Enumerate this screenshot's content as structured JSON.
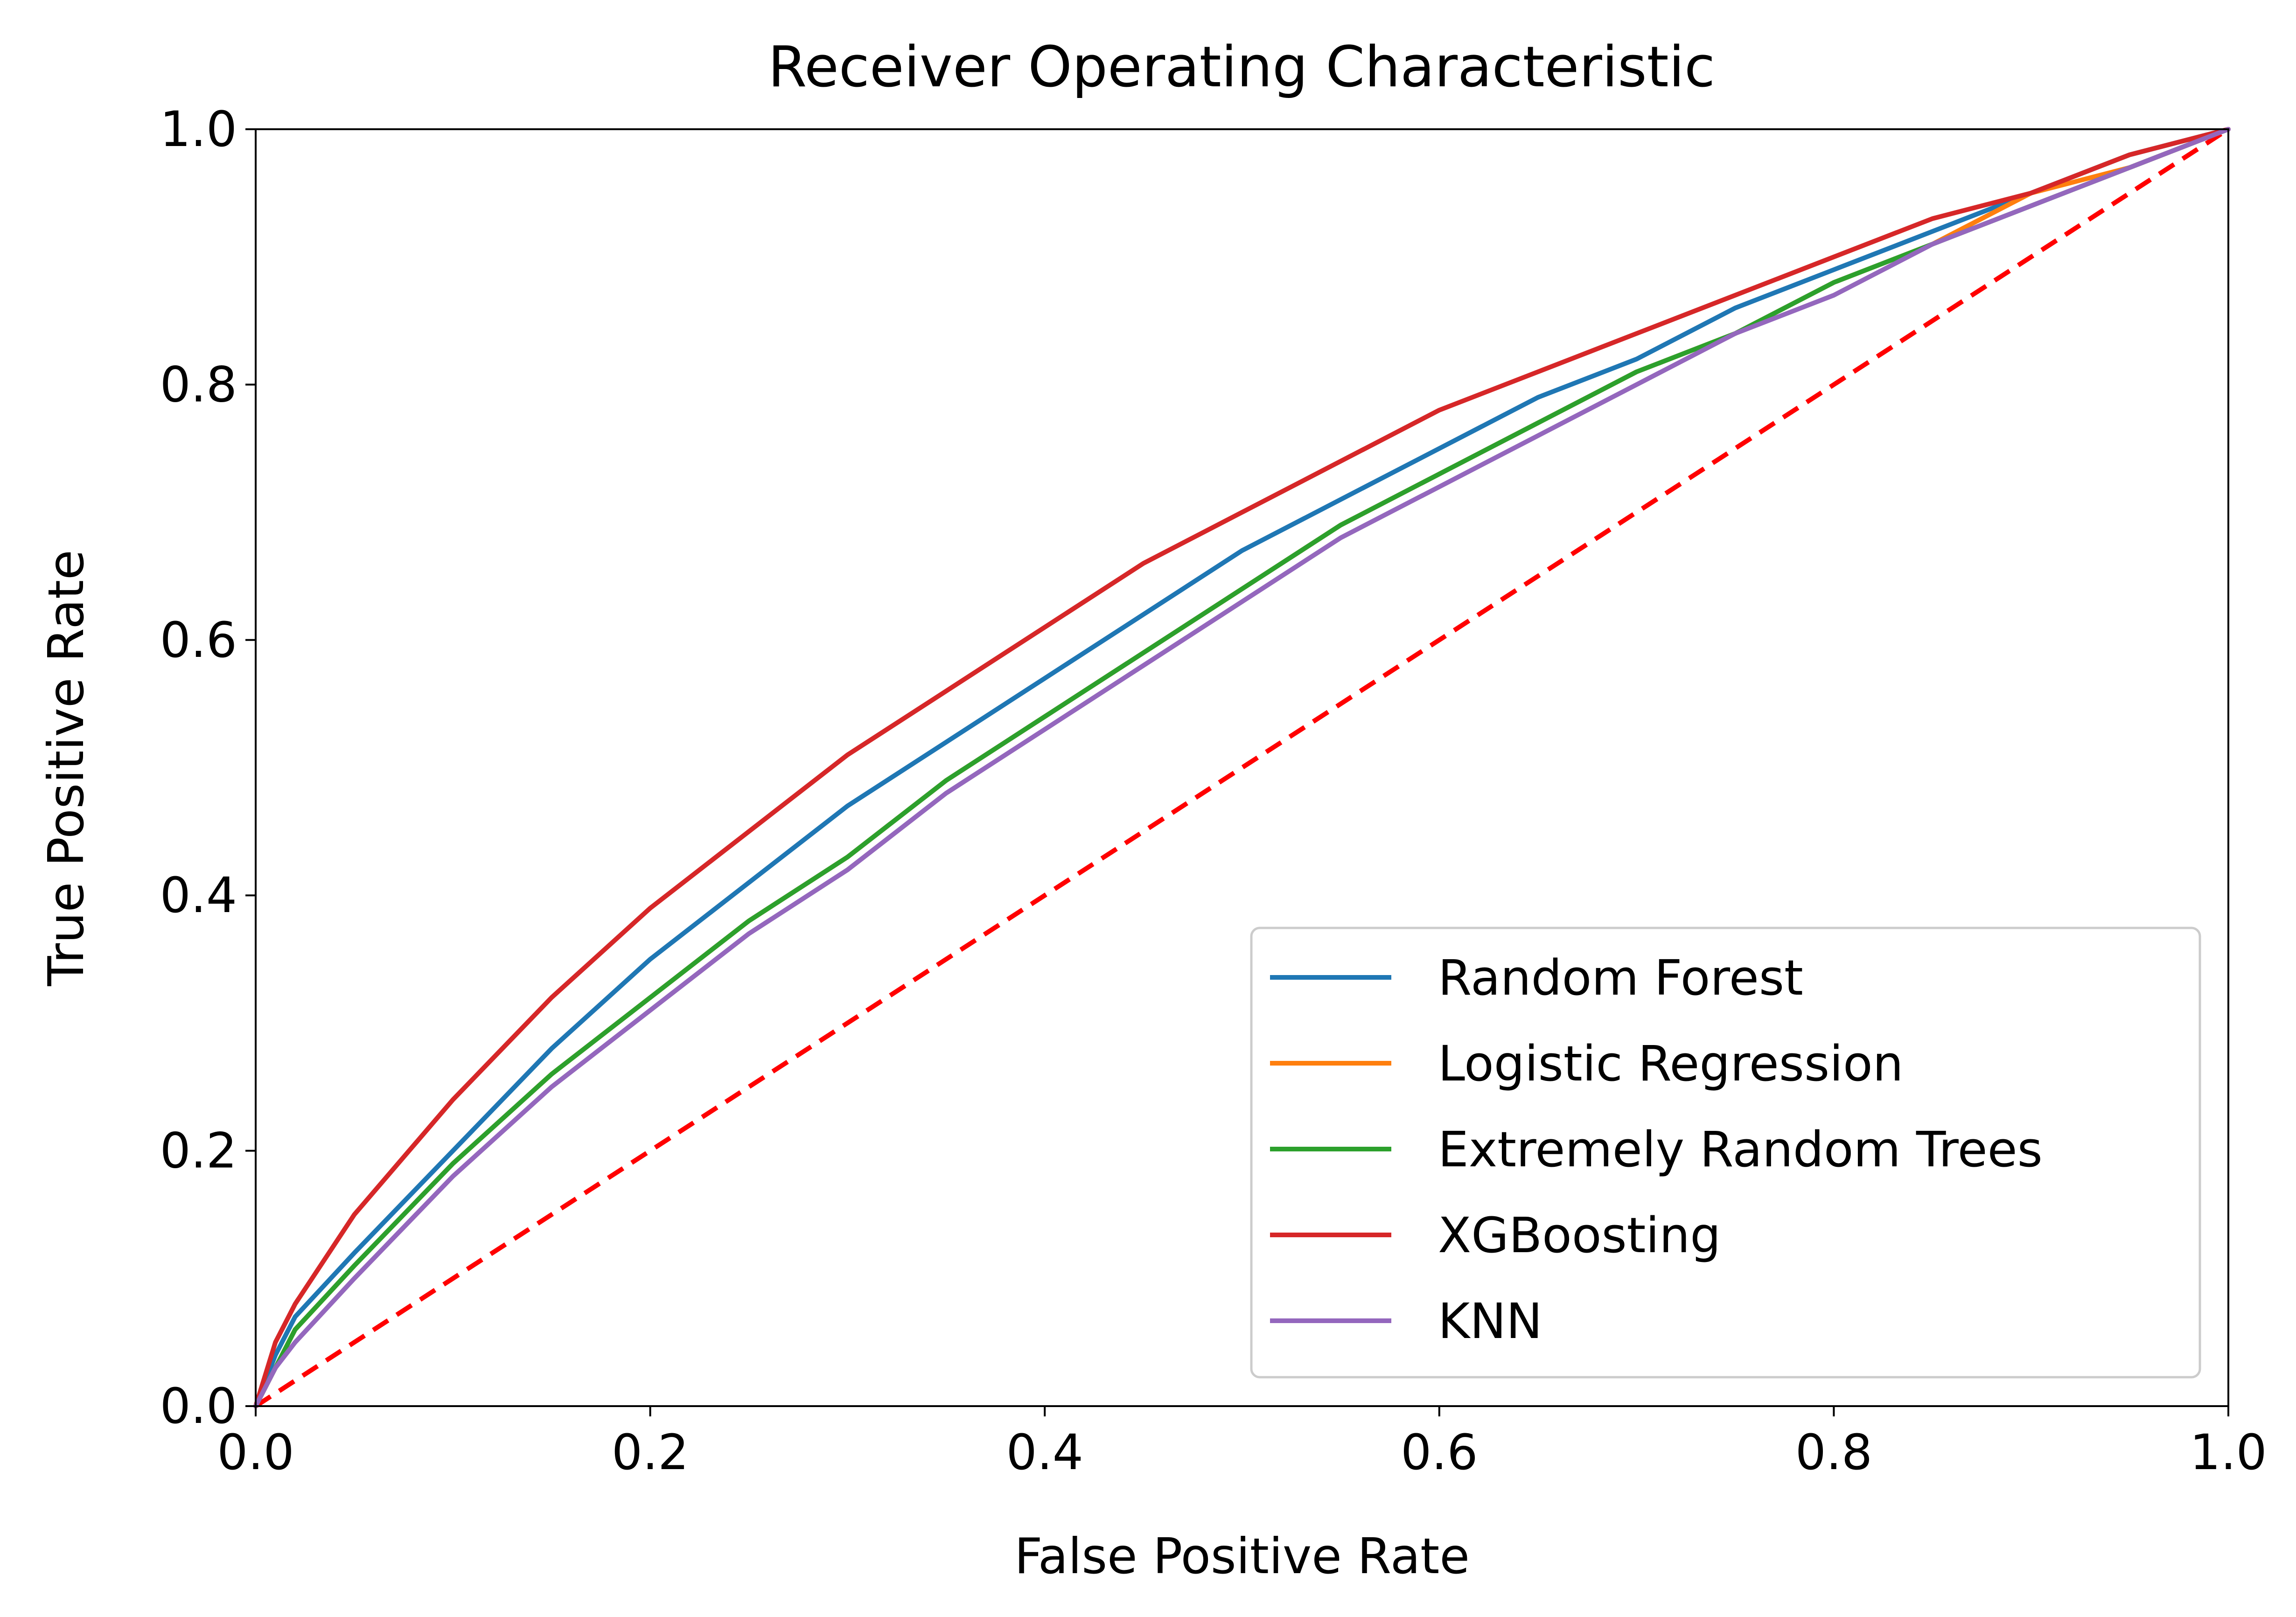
{
  "chart_data": {
    "type": "line",
    "title": "Receiver Operating Characteristic",
    "xlabel": "False Positive Rate",
    "ylabel": "True Positive Rate",
    "xlim": [
      0,
      1
    ],
    "ylim": [
      0,
      1
    ],
    "xticks": [
      "0.0",
      "0.2",
      "0.4",
      "0.6",
      "0.8",
      "1.0"
    ],
    "yticks": [
      "0.0",
      "0.2",
      "0.4",
      "0.6",
      "0.8",
      "1.0"
    ],
    "grid": false,
    "legend_position": "lower-right",
    "series": [
      {
        "name": "Random Forest",
        "color": "#1f77b4",
        "x": [
          0,
          0.01,
          0.02,
          0.05,
          0.1,
          0.15,
          0.2,
          0.25,
          0.3,
          0.35,
          0.4,
          0.45,
          0.5,
          0.55,
          0.6,
          0.65,
          0.7,
          0.75,
          0.8,
          0.85,
          0.9,
          0.95,
          1.0
        ],
        "y": [
          0,
          0.04,
          0.07,
          0.12,
          0.2,
          0.28,
          0.35,
          0.41,
          0.47,
          0.52,
          0.57,
          0.62,
          0.67,
          0.71,
          0.75,
          0.79,
          0.82,
          0.86,
          0.89,
          0.92,
          0.95,
          0.98,
          1.0
        ]
      },
      {
        "name": "Logistic Regression",
        "color": "#ff7f0e",
        "x": [
          0,
          0.01,
          0.02,
          0.05,
          0.1,
          0.15,
          0.2,
          0.25,
          0.3,
          0.35,
          0.4,
          0.45,
          0.5,
          0.55,
          0.6,
          0.65,
          0.7,
          0.75,
          0.8,
          0.85,
          0.9,
          0.95,
          1.0
        ],
        "y": [
          0,
          0.03,
          0.06,
          0.11,
          0.19,
          0.26,
          0.32,
          0.38,
          0.43,
          0.49,
          0.54,
          0.59,
          0.64,
          0.69,
          0.73,
          0.77,
          0.81,
          0.84,
          0.88,
          0.91,
          0.95,
          0.97,
          1.0
        ]
      },
      {
        "name": "Extremely Random Trees",
        "color": "#2ca02c",
        "x": [
          0,
          0.01,
          0.02,
          0.05,
          0.1,
          0.15,
          0.2,
          0.25,
          0.3,
          0.35,
          0.4,
          0.45,
          0.5,
          0.55,
          0.6,
          0.65,
          0.7,
          0.75,
          0.8,
          0.85,
          0.9,
          0.95,
          1.0
        ],
        "y": [
          0,
          0.03,
          0.06,
          0.11,
          0.19,
          0.26,
          0.32,
          0.38,
          0.43,
          0.49,
          0.54,
          0.59,
          0.64,
          0.69,
          0.73,
          0.77,
          0.81,
          0.84,
          0.88,
          0.91,
          0.94,
          0.97,
          1.0
        ]
      },
      {
        "name": "XGBoosting",
        "color": "#d62728",
        "x": [
          0,
          0.01,
          0.02,
          0.05,
          0.1,
          0.15,
          0.2,
          0.25,
          0.3,
          0.35,
          0.4,
          0.45,
          0.5,
          0.55,
          0.6,
          0.65,
          0.7,
          0.75,
          0.8,
          0.85,
          0.9,
          0.95,
          1.0
        ],
        "y": [
          0,
          0.05,
          0.08,
          0.15,
          0.24,
          0.32,
          0.39,
          0.45,
          0.51,
          0.56,
          0.61,
          0.66,
          0.7,
          0.74,
          0.78,
          0.81,
          0.84,
          0.87,
          0.9,
          0.93,
          0.95,
          0.98,
          1.0
        ]
      },
      {
        "name": "KNN",
        "color": "#9467bd",
        "x": [
          0,
          0.01,
          0.02,
          0.05,
          0.1,
          0.15,
          0.2,
          0.25,
          0.3,
          0.35,
          0.4,
          0.45,
          0.5,
          0.55,
          0.6,
          0.65,
          0.7,
          0.75,
          0.8,
          0.85,
          0.9,
          0.95,
          1.0
        ],
        "y": [
          0,
          0.03,
          0.05,
          0.1,
          0.18,
          0.25,
          0.31,
          0.37,
          0.42,
          0.48,
          0.53,
          0.58,
          0.63,
          0.68,
          0.72,
          0.76,
          0.8,
          0.84,
          0.87,
          0.91,
          0.94,
          0.97,
          1.0
        ]
      }
    ],
    "reference_line": {
      "name": "chance",
      "color": "#ff0000",
      "style": "dashed",
      "x": [
        0,
        1
      ],
      "y": [
        0,
        1
      ]
    }
  }
}
